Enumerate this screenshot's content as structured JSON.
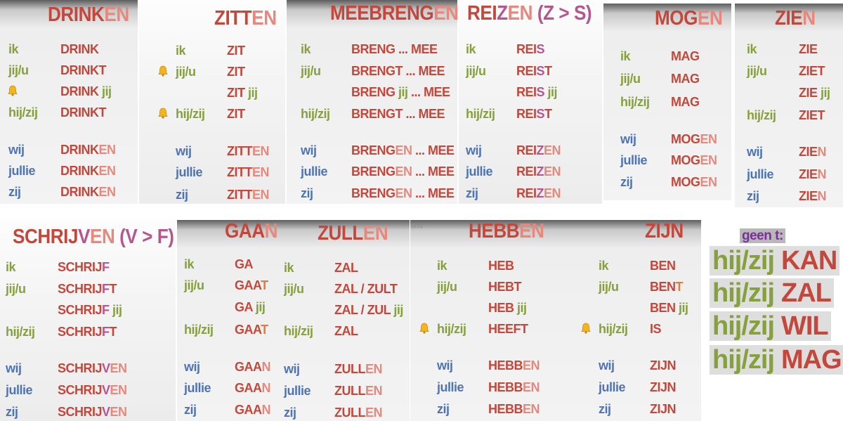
{
  "colors": {
    "singular": "#86a03c",
    "plural": "#4d74b4"
  },
  "cards": [
    {
      "title": [
        [
          "DRINK",
          "#c4473b"
        ],
        [
          "EN",
          "#e6897c"
        ]
      ],
      "singular": [
        {
          "pronoun": "ik",
          "form": [
            [
              "DRINK",
              "#c4473b"
            ]
          ]
        },
        {
          "pronoun": "jij/u",
          "form": [
            [
              "DRINKT",
              "#c4473b"
            ]
          ]
        },
        {
          "form": [
            [
              "DRINK",
              "#c4473b"
            ],
            [
              " jij",
              "#86a03c"
            ]
          ]
        },
        {
          "pronoun": "hij/zij",
          "form": [
            [
              "DRINKT",
              "#c4473b"
            ]
          ]
        }
      ],
      "plural": [
        {
          "pronoun": "wij",
          "form": [
            [
              "DRINK",
              "#c4473b"
            ],
            [
              "EN",
              "#e6897c"
            ]
          ]
        },
        {
          "pronoun": "jullie",
          "form": [
            [
              "DRINK",
              "#c4473b"
            ],
            [
              "EN",
              "#e6897c"
            ]
          ]
        },
        {
          "pronoun": "zij",
          "form": [
            [
              "DRINK",
              "#c4473b"
            ],
            [
              "EN",
              "#e6897c"
            ]
          ]
        }
      ]
    },
    {
      "title": [
        [
          "ZITT",
          "#c4473b"
        ],
        [
          "EN",
          "#e6897c"
        ]
      ],
      "singular": [
        {
          "pronoun": "ik",
          "form": [
            [
              "ZIT",
              "#c4473b"
            ]
          ]
        },
        {
          "pronoun": "jij/u",
          "form": [
            [
              "ZIT",
              "#c4473b"
            ]
          ]
        },
        {
          "form": [
            [
              "ZIT",
              "#c4473b"
            ],
            [
              " jij",
              "#86a03c"
            ]
          ]
        },
        {
          "pronoun": "hij/zij",
          "form": [
            [
              "ZIT",
              "#c4473b"
            ]
          ]
        }
      ],
      "plural": [
        {
          "pronoun": "wij",
          "form": [
            [
              "ZITT",
              "#c4473b"
            ],
            [
              "EN",
              "#e6897c"
            ]
          ]
        },
        {
          "pronoun": "jullie",
          "form": [
            [
              "ZITT",
              "#c4473b"
            ],
            [
              "EN",
              "#e6897c"
            ]
          ]
        },
        {
          "pronoun": "zij",
          "form": [
            [
              "ZITT",
              "#c4473b"
            ],
            [
              "EN",
              "#e6897c"
            ]
          ]
        }
      ]
    },
    {
      "title": [
        [
          "MEEBRENG",
          "#c4473b"
        ],
        [
          "EN",
          "#e6897c"
        ]
      ],
      "singular": [
        {
          "pronoun": "ik",
          "form": [
            [
              "BRENG ... MEE",
              "#c4473b"
            ]
          ]
        },
        {
          "pronoun": "jij/u",
          "form": [
            [
              "BRENGT ... MEE",
              "#c4473b"
            ]
          ]
        },
        {
          "form": [
            [
              "BRENG ",
              "#c4473b"
            ],
            [
              "jij",
              "#86a03c"
            ],
            [
              " ... MEE",
              "#c4473b"
            ]
          ]
        },
        {
          "pronoun": "hij/zij",
          "form": [
            [
              "BRENGT ... MEE",
              "#c4473b"
            ]
          ]
        }
      ],
      "plural": [
        {
          "pronoun": "wij",
          "form": [
            [
              "BRENG",
              "#c4473b"
            ],
            [
              "EN",
              "#e6897c"
            ],
            [
              " ... MEE",
              "#c4473b"
            ]
          ]
        },
        {
          "pronoun": "jullie",
          "form": [
            [
              "BRENG",
              "#c4473b"
            ],
            [
              "EN",
              "#e6897c"
            ],
            [
              " ... MEE",
              "#c4473b"
            ]
          ]
        },
        {
          "pronoun": "zij",
          "form": [
            [
              "BRENG",
              "#c4473b"
            ],
            [
              "EN",
              "#e6897c"
            ],
            [
              " ... MEE",
              "#c4473b"
            ]
          ]
        }
      ]
    },
    {
      "title": [
        [
          "REI",
          "#c4473b"
        ],
        [
          "Z",
          "#b5578f"
        ],
        [
          "EN",
          "#e6897c"
        ],
        [
          " (Z > S)",
          "#b5578f"
        ]
      ],
      "singular": [
        {
          "pronoun": "ik",
          "form": [
            [
              "REI",
              "#c4473b"
            ],
            [
              "S",
              "#b5578f"
            ]
          ]
        },
        {
          "pronoun": "jij/u",
          "form": [
            [
              "REI",
              "#c4473b"
            ],
            [
              "S",
              "#b5578f"
            ],
            [
              "T",
              "#c4473b"
            ]
          ]
        },
        {
          "form": [
            [
              "REI",
              "#c4473b"
            ],
            [
              "S",
              "#b5578f"
            ],
            [
              " jij",
              "#86a03c"
            ]
          ]
        },
        {
          "pronoun": "hij/zij",
          "form": [
            [
              "REI",
              "#c4473b"
            ],
            [
              "S",
              "#b5578f"
            ],
            [
              "T",
              "#c4473b"
            ]
          ]
        }
      ],
      "plural": [
        {
          "pronoun": "wij",
          "form": [
            [
              "REI",
              "#c4473b"
            ],
            [
              "Z",
              "#b5578f"
            ],
            [
              "EN",
              "#e6897c"
            ]
          ]
        },
        {
          "pronoun": "jullie",
          "form": [
            [
              "REI",
              "#c4473b"
            ],
            [
              "Z",
              "#b5578f"
            ],
            [
              "EN",
              "#e6897c"
            ]
          ]
        },
        {
          "pronoun": "zij",
          "form": [
            [
              "REI",
              "#c4473b"
            ],
            [
              "Z",
              "#b5578f"
            ],
            [
              "EN",
              "#e6897c"
            ]
          ]
        }
      ]
    },
    {
      "title": [
        [
          "MOG",
          "#c4473b"
        ],
        [
          "EN",
          "#e6897c"
        ]
      ],
      "singular": [
        {
          "pronoun": "ik",
          "form": [
            [
              "MAG",
              "#c4473b"
            ]
          ]
        },
        {
          "pronoun": "jij/u",
          "form": [
            [
              "MAG",
              "#c4473b"
            ]
          ]
        },
        {
          "pronoun": "hij/zij",
          "form": [
            [
              "MAG",
              "#c4473b"
            ]
          ]
        }
      ],
      "plural": [
        {
          "pronoun": "wij",
          "form": [
            [
              "MOG",
              "#c4473b"
            ],
            [
              "EN",
              "#e6897c"
            ]
          ]
        },
        {
          "pronoun": "jullie",
          "form": [
            [
              "MOG",
              "#c4473b"
            ],
            [
              "EN",
              "#e6897c"
            ]
          ]
        },
        {
          "pronoun": "zij",
          "form": [
            [
              "MOG",
              "#c4473b"
            ],
            [
              "EN",
              "#e6897c"
            ]
          ]
        }
      ]
    },
    {
      "title": [
        [
          "ZIE",
          "#c4473b"
        ],
        [
          "N",
          "#e6897c"
        ]
      ],
      "singular": [
        {
          "pronoun": "ik",
          "form": [
            [
              "ZIE",
              "#c4473b"
            ]
          ]
        },
        {
          "pronoun": "jij/u",
          "form": [
            [
              "ZIET",
              "#c4473b"
            ]
          ]
        },
        {
          "form": [
            [
              "ZIE",
              "#c4473b"
            ],
            [
              " jij",
              "#86a03c"
            ]
          ]
        },
        {
          "pronoun": "hij/zij",
          "form": [
            [
              "ZIET",
              "#c4473b"
            ]
          ]
        }
      ],
      "plural": [
        {
          "pronoun": "wij",
          "form": [
            [
              "ZIE",
              "#c4473b"
            ],
            [
              "N",
              "#e6897c"
            ]
          ]
        },
        {
          "pronoun": "jullie",
          "form": [
            [
              "ZIE",
              "#c4473b"
            ],
            [
              "N",
              "#e6897c"
            ]
          ]
        },
        {
          "pronoun": "zij",
          "form": [
            [
              "ZIE",
              "#c4473b"
            ],
            [
              "N",
              "#e6897c"
            ]
          ]
        }
      ]
    },
    {
      "title": [
        [
          "SCHRIJ",
          "#c4473b"
        ],
        [
          "V",
          "#b5578f"
        ],
        [
          "EN",
          "#e6897c"
        ],
        [
          " (V > F)",
          "#b5578f"
        ]
      ],
      "singular": [
        {
          "pronoun": "ik",
          "form": [
            [
              "SCHRIJ",
              "#c4473b"
            ],
            [
              "F",
              "#b5578f"
            ]
          ]
        },
        {
          "pronoun": "jij/u",
          "form": [
            [
              "SCHRIJ",
              "#c4473b"
            ],
            [
              "F",
              "#b5578f"
            ],
            [
              "T",
              "#c4473b"
            ]
          ]
        },
        {
          "form": [
            [
              "SCHRIJ",
              "#c4473b"
            ],
            [
              "F",
              "#b5578f"
            ],
            [
              " jij",
              "#86a03c"
            ]
          ]
        },
        {
          "pronoun": "hij/zij",
          "form": [
            [
              "SCHRIJ",
              "#c4473b"
            ],
            [
              "F",
              "#b5578f"
            ],
            [
              "T",
              "#c4473b"
            ]
          ]
        }
      ],
      "plural": [
        {
          "pronoun": "wij",
          "form": [
            [
              "SCHRIJ",
              "#c4473b"
            ],
            [
              "V",
              "#b5578f"
            ],
            [
              "EN",
              "#e6897c"
            ]
          ]
        },
        {
          "pronoun": "jullie",
          "form": [
            [
              "SCHRIJ",
              "#c4473b"
            ],
            [
              "V",
              "#b5578f"
            ],
            [
              "EN",
              "#e6897c"
            ]
          ]
        },
        {
          "pronoun": "zij",
          "form": [
            [
              "SCHRIJ",
              "#c4473b"
            ],
            [
              "V",
              "#b5578f"
            ],
            [
              "EN",
              "#e6897c"
            ]
          ]
        }
      ]
    },
    {
      "title": [
        [
          "GAA",
          "#c4473b"
        ],
        [
          "N",
          "#e6897c"
        ]
      ],
      "singular": [
        {
          "pronoun": "ik",
          "form": [
            [
              "GA",
              "#c4473b"
            ]
          ]
        },
        {
          "pronoun": "jij/u",
          "form": [
            [
              "GAA",
              "#c4473b"
            ],
            [
              "T",
              "#e27c3c"
            ]
          ]
        },
        {
          "form": [
            [
              "GA",
              "#c4473b"
            ],
            [
              " jij",
              "#86a03c"
            ]
          ]
        },
        {
          "pronoun": "hij/zij",
          "form": [
            [
              "GAA",
              "#c4473b"
            ],
            [
              "T",
              "#e27c3c"
            ]
          ]
        }
      ],
      "plural": [
        {
          "pronoun": "wij",
          "form": [
            [
              "GAA",
              "#c4473b"
            ],
            [
              "N",
              "#e6897c"
            ]
          ]
        },
        {
          "pronoun": "jullie",
          "form": [
            [
              "GAA",
              "#c4473b"
            ],
            [
              "N",
              "#e6897c"
            ]
          ]
        },
        {
          "pronoun": "zij",
          "form": [
            [
              "GAA",
              "#c4473b"
            ],
            [
              "N",
              "#e6897c"
            ]
          ]
        }
      ]
    },
    {
      "title": [
        [
          "ZULL",
          "#c4473b"
        ],
        [
          "EN",
          "#e6897c"
        ]
      ],
      "singular": [
        {
          "pronoun": "ik",
          "form": [
            [
              "ZAL",
              "#c4473b"
            ]
          ]
        },
        {
          "pronoun": "jij/u",
          "form": [
            [
              "ZAL / ZULT",
              "#c4473b"
            ]
          ]
        },
        {
          "form": [
            [
              "ZAL / ZUL",
              "#c4473b"
            ],
            [
              " jij",
              "#86a03c"
            ]
          ]
        },
        {
          "pronoun": "hij/zij",
          "form": [
            [
              "ZAL",
              "#c4473b"
            ]
          ]
        }
      ],
      "plural": [
        {
          "pronoun": "wij",
          "form": [
            [
              "ZULL",
              "#c4473b"
            ],
            [
              "EN",
              "#e6897c"
            ]
          ]
        },
        {
          "pronoun": "jullie",
          "form": [
            [
              "ZULL",
              "#c4473b"
            ],
            [
              "EN",
              "#e6897c"
            ]
          ]
        },
        {
          "pronoun": "zij",
          "form": [
            [
              "ZULL",
              "#c4473b"
            ],
            [
              "EN",
              "#e6897c"
            ]
          ]
        }
      ]
    },
    {
      "title": [
        [
          "HEBB",
          "#c4473b"
        ],
        [
          "EN",
          "#e6897c"
        ]
      ],
      "singular": [
        {
          "pronoun": "ik",
          "form": [
            [
              "HEB",
              "#c4473b"
            ]
          ]
        },
        {
          "pronoun": "jij/u",
          "form": [
            [
              "HEBT",
              "#c4473b"
            ]
          ]
        },
        {
          "form": [
            [
              "HEB",
              "#c4473b"
            ],
            [
              " jij",
              "#86a03c"
            ]
          ]
        },
        {
          "pronoun": "hij/zij",
          "form": [
            [
              "HEEFT",
              "#c4473b"
            ]
          ]
        }
      ],
      "plural": [
        {
          "pronoun": "wij",
          "form": [
            [
              "HEBB",
              "#c4473b"
            ],
            [
              "EN",
              "#e6897c"
            ]
          ]
        },
        {
          "pronoun": "jullie",
          "form": [
            [
              "HEBB",
              "#c4473b"
            ],
            [
              "EN",
              "#e6897c"
            ]
          ]
        },
        {
          "pronoun": "zij",
          "form": [
            [
              "HEBB",
              "#c4473b"
            ],
            [
              "EN",
              "#e6897c"
            ]
          ]
        }
      ]
    },
    {
      "title": [
        [
          "ZIJN",
          "#c4473b"
        ]
      ],
      "singular": [
        {
          "pronoun": "ik",
          "form": [
            [
              "BEN",
              "#c4473b"
            ]
          ]
        },
        {
          "pronoun": "jij/u",
          "form": [
            [
              "BEN",
              "#c4473b"
            ],
            [
              "T",
              "#e27c3c"
            ]
          ]
        },
        {
          "form": [
            [
              "BEN",
              "#c4473b"
            ],
            [
              " jij",
              "#86a03c"
            ]
          ]
        },
        {
          "pronoun": "hij/zij",
          "form": [
            [
              "IS",
              "#c4473b"
            ]
          ]
        }
      ],
      "plural": [
        {
          "pronoun": "wij",
          "form": [
            [
              "ZIJN",
              "#c4473b"
            ]
          ]
        },
        {
          "pronoun": "jullie",
          "form": [
            [
              "ZIJN",
              "#c4473b"
            ]
          ]
        },
        {
          "pronoun": "zij",
          "form": [
            [
              "ZIJN",
              "#c4473b"
            ]
          ]
        }
      ]
    }
  ],
  "tense_note": "(o.t.t)",
  "geen_t": {
    "label": "geen t:",
    "label_color": "#7b2e9a",
    "rows": [
      {
        "pronoun": "hij/zij",
        "verb": "KAN"
      },
      {
        "pronoun": "hij/zij",
        "verb": "ZAL"
      },
      {
        "pronoun": "hij/zij",
        "verb": "WIL"
      },
      {
        "pronoun": "hij/zij",
        "verb": "MAG"
      }
    ]
  }
}
